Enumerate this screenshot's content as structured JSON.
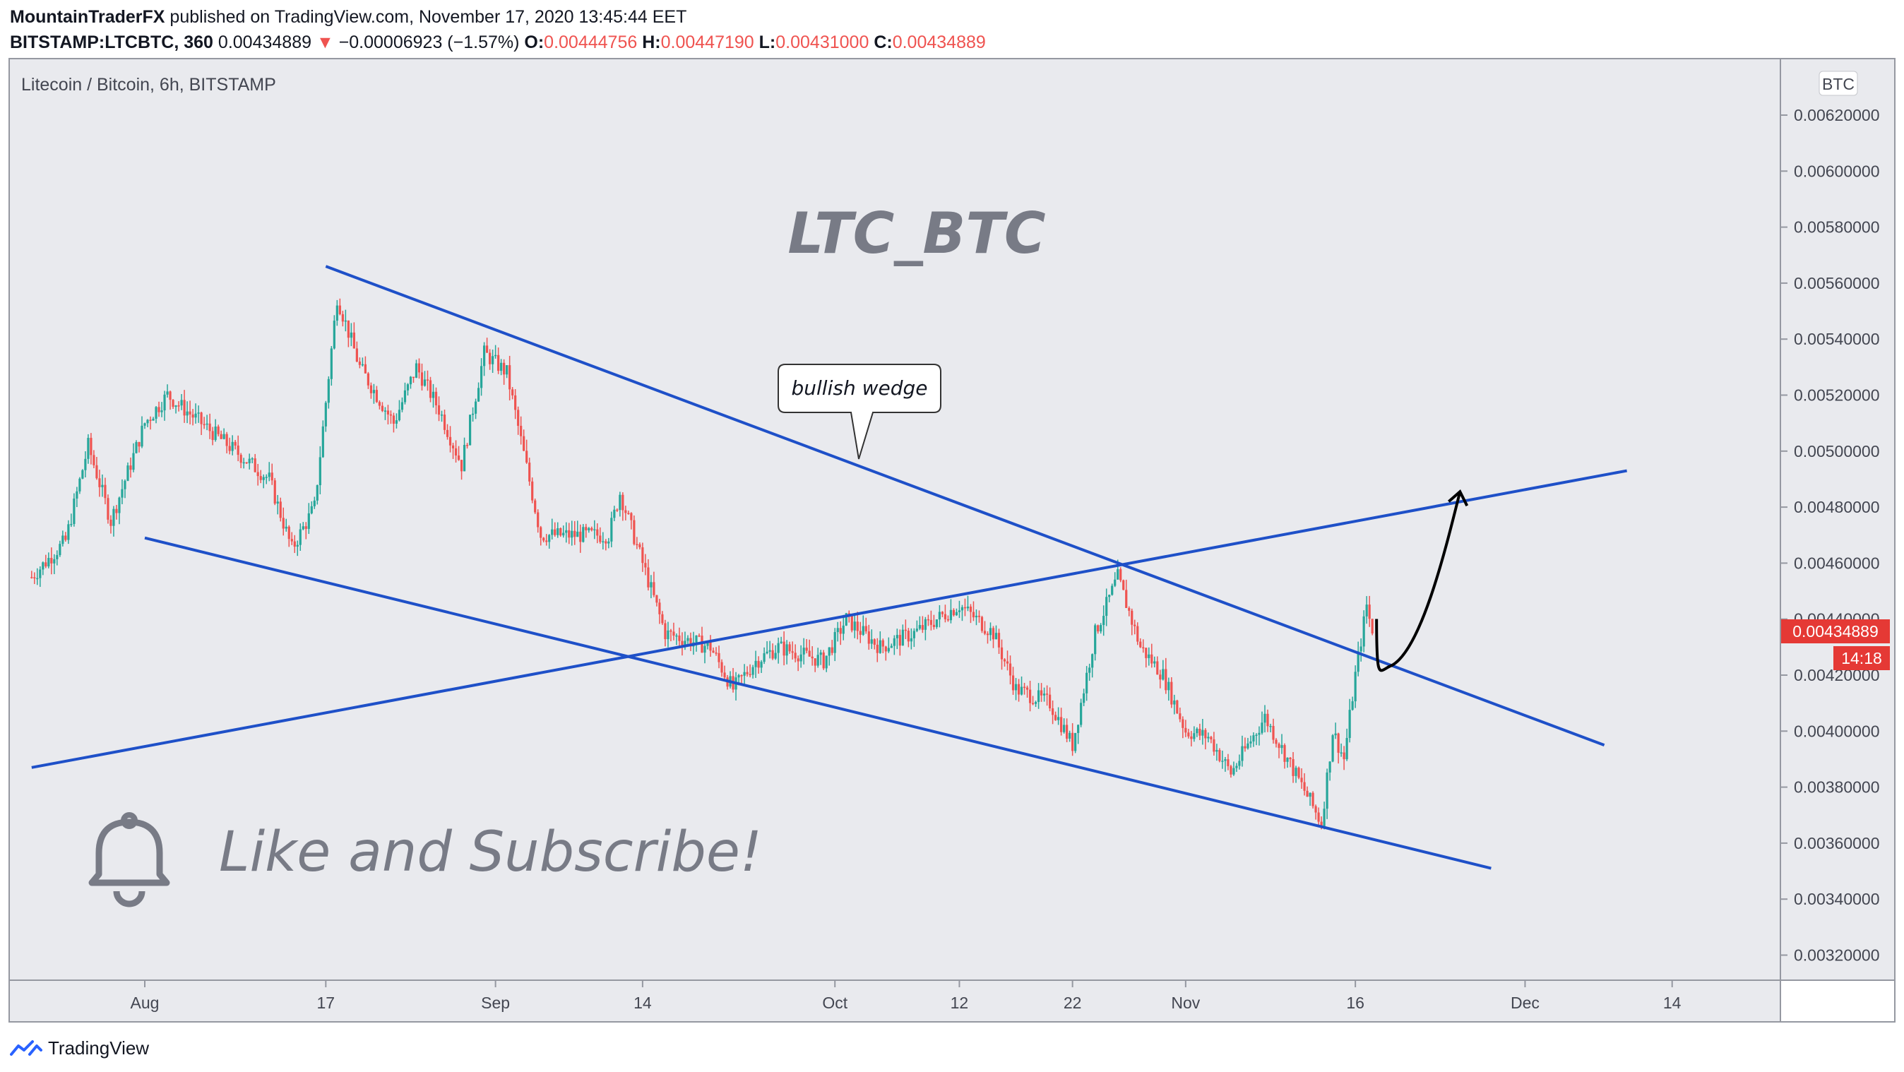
{
  "header": {
    "publisher": "MountainTraderFX",
    "published_text": "published on TradingView.com, November 17, 2020 13:45:44 EET",
    "symbol": "BITSTAMP:LTCBTC, 360",
    "last": "0.00434889",
    "change": "−0.00006923 (−1.57%)",
    "o_label": "O:",
    "o": "0.00444756",
    "h_label": "H:",
    "h": "0.00447190",
    "l_label": "L:",
    "l": "0.00431000",
    "c_label": "C:",
    "c": "0.00434889"
  },
  "chart_title": "Litecoin / Bitcoin, 6h, BITSTAMP",
  "currency_badge": "BTC",
  "watermark": "LTC_BTC",
  "callout": "bullish wedge",
  "promo": "Like and Subscribe!",
  "price_label": "0.00434889",
  "countdown": "14:18",
  "footer_brand": "TradingView",
  "colors": {
    "up": "#26a69a",
    "down": "#ef5350",
    "trendline": "#1e50c8",
    "background": "#e9eaee",
    "price_tag": "#e53935"
  },
  "chart_data": {
    "type": "candlestick",
    "y_axis": {
      "ticks": [
        "0.00620000",
        "0.00600000",
        "0.00580000",
        "0.00560000",
        "0.00540000",
        "0.00520000",
        "0.00500000",
        "0.00480000",
        "0.00460000",
        "0.00440000",
        "0.00420000",
        "0.00400000",
        "0.00380000",
        "0.00360000",
        "0.00340000",
        "0.00320000"
      ]
    },
    "x_axis": {
      "ticks": [
        "Aug",
        "17",
        "Sep",
        "14",
        "Oct",
        "12",
        "22",
        "Nov",
        "16",
        "Dec",
        "14"
      ]
    },
    "waypoints": [
      {
        "x": "Jul 22",
        "y": 0.00455
      },
      {
        "x": "Jul 25",
        "y": 0.00468
      },
      {
        "x": "Jul 27",
        "y": 0.00502
      },
      {
        "x": "Jul 29",
        "y": 0.00475
      },
      {
        "x": "Aug 1",
        "y": 0.0051
      },
      {
        "x": "Aug 3",
        "y": 0.0052
      },
      {
        "x": "Aug 6",
        "y": 0.0051
      },
      {
        "x": "Aug 9",
        "y": 0.005
      },
      {
        "x": "Aug 12",
        "y": 0.0049
      },
      {
        "x": "Aug 14",
        "y": 0.00465
      },
      {
        "x": "Aug 16",
        "y": 0.0048
      },
      {
        "x": "Aug 18",
        "y": 0.00555
      },
      {
        "x": "Aug 20",
        "y": 0.0053
      },
      {
        "x": "Aug 23",
        "y": 0.0051
      },
      {
        "x": "Aug 25",
        "y": 0.0053
      },
      {
        "x": "Aug 27",
        "y": 0.00515
      },
      {
        "x": "Aug 29",
        "y": 0.00495
      },
      {
        "x": "Aug 31",
        "y": 0.00535
      },
      {
        "x": "Sep 2",
        "y": 0.00528
      },
      {
        "x": "Sep 5",
        "y": 0.0047
      },
      {
        "x": "Sep 8",
        "y": 0.0047
      },
      {
        "x": "Sep 11",
        "y": 0.0047
      },
      {
        "x": "Sep 12",
        "y": 0.00485
      },
      {
        "x": "Sep 14",
        "y": 0.0046
      },
      {
        "x": "Sep 16",
        "y": 0.00435
      },
      {
        "x": "Sep 20",
        "y": 0.0043
      },
      {
        "x": "Sep 22",
        "y": 0.00415
      },
      {
        "x": "Sep 24",
        "y": 0.00425
      },
      {
        "x": "Sep 26",
        "y": 0.0043
      },
      {
        "x": "Sep 30",
        "y": 0.00425
      },
      {
        "x": "Oct 2",
        "y": 0.0044
      },
      {
        "x": "Oct 5",
        "y": 0.0043
      },
      {
        "x": "Oct 8",
        "y": 0.00435
      },
      {
        "x": "Oct 12",
        "y": 0.00445
      },
      {
        "x": "Oct 15",
        "y": 0.00435
      },
      {
        "x": "Oct 17",
        "y": 0.00415
      },
      {
        "x": "Oct 20",
        "y": 0.0041
      },
      {
        "x": "Oct 22",
        "y": 0.00395
      },
      {
        "x": "Oct 24",
        "y": 0.00435
      },
      {
        "x": "Oct 26",
        "y": 0.00455
      },
      {
        "x": "Oct 28",
        "y": 0.0043
      },
      {
        "x": "Oct 30",
        "y": 0.0042
      },
      {
        "x": "Nov 1",
        "y": 0.004
      },
      {
        "x": "Nov 3",
        "y": 0.00398
      },
      {
        "x": "Nov 5",
        "y": 0.00385
      },
      {
        "x": "Nov 8",
        "y": 0.00405
      },
      {
        "x": "Nov 10",
        "y": 0.0039
      },
      {
        "x": "Nov 12",
        "y": 0.00375
      },
      {
        "x": "Nov 13",
        "y": 0.00367
      },
      {
        "x": "Nov 14",
        "y": 0.004
      },
      {
        "x": "Nov 15",
        "y": 0.0039
      },
      {
        "x": "Nov 16",
        "y": 0.0042
      },
      {
        "x": "Nov 17",
        "y": 0.00445
      },
      {
        "x": "Nov 17",
        "y": 0.00434889
      }
    ],
    "trendlines": [
      {
        "name": "wedge upper",
        "from": {
          "x": "Aug 17",
          "y": 0.00566
        },
        "to": {
          "x": "Dec 8",
          "y": 0.00395
        }
      },
      {
        "name": "wedge lower",
        "from": {
          "x": "Aug 1",
          "y": 0.00469
        },
        "to": {
          "x": "Nov 28",
          "y": 0.00351
        }
      },
      {
        "name": "rising line",
        "from": {
          "x": "Jul 22",
          "y": 0.00387
        },
        "to": {
          "x": "Dec 10",
          "y": 0.00493
        }
      }
    ],
    "projection": {
      "from": {
        "x": "Nov 17",
        "y": 0.00433
      },
      "dip": {
        "x": "Nov 18",
        "y": 0.00422
      },
      "to": {
        "x": "Nov 24",
        "y": 0.00483
      }
    }
  }
}
